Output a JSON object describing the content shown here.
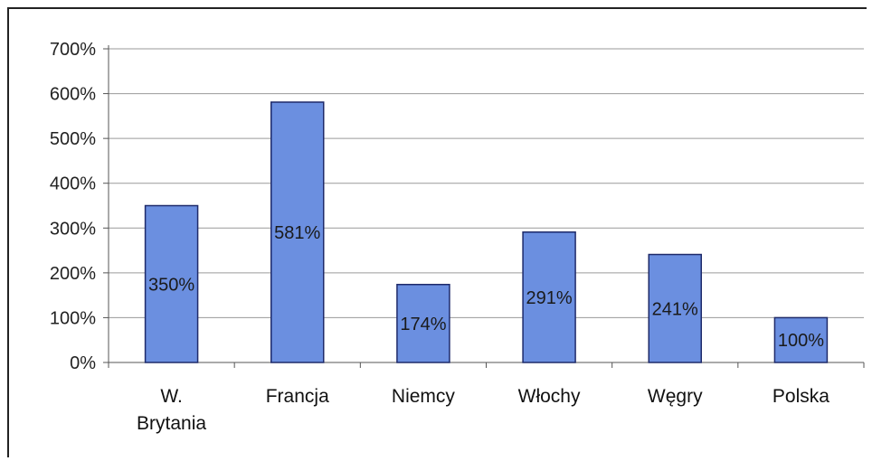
{
  "chart_data": {
    "type": "bar",
    "categories": [
      [
        "W.",
        "Brytania"
      ],
      [
        "Francja"
      ],
      [
        "Niemcy"
      ],
      [
        "Włochy"
      ],
      [
        "Węgry"
      ],
      [
        "Polska"
      ]
    ],
    "values": [
      350,
      581,
      174,
      291,
      241,
      100
    ],
    "data_labels": [
      "350%",
      "581%",
      "174%",
      "291%",
      "241%",
      "100%"
    ],
    "y_ticks": [
      "0%",
      "100%",
      "200%",
      "300%",
      "400%",
      "500%",
      "600%",
      "700%"
    ],
    "ylim": [
      0,
      700
    ],
    "grid": true,
    "legend": "none",
    "bar_color": "#6b8fe0",
    "bar_edge": "#1e2a6a",
    "grid_color": "#9a9a9a"
  }
}
